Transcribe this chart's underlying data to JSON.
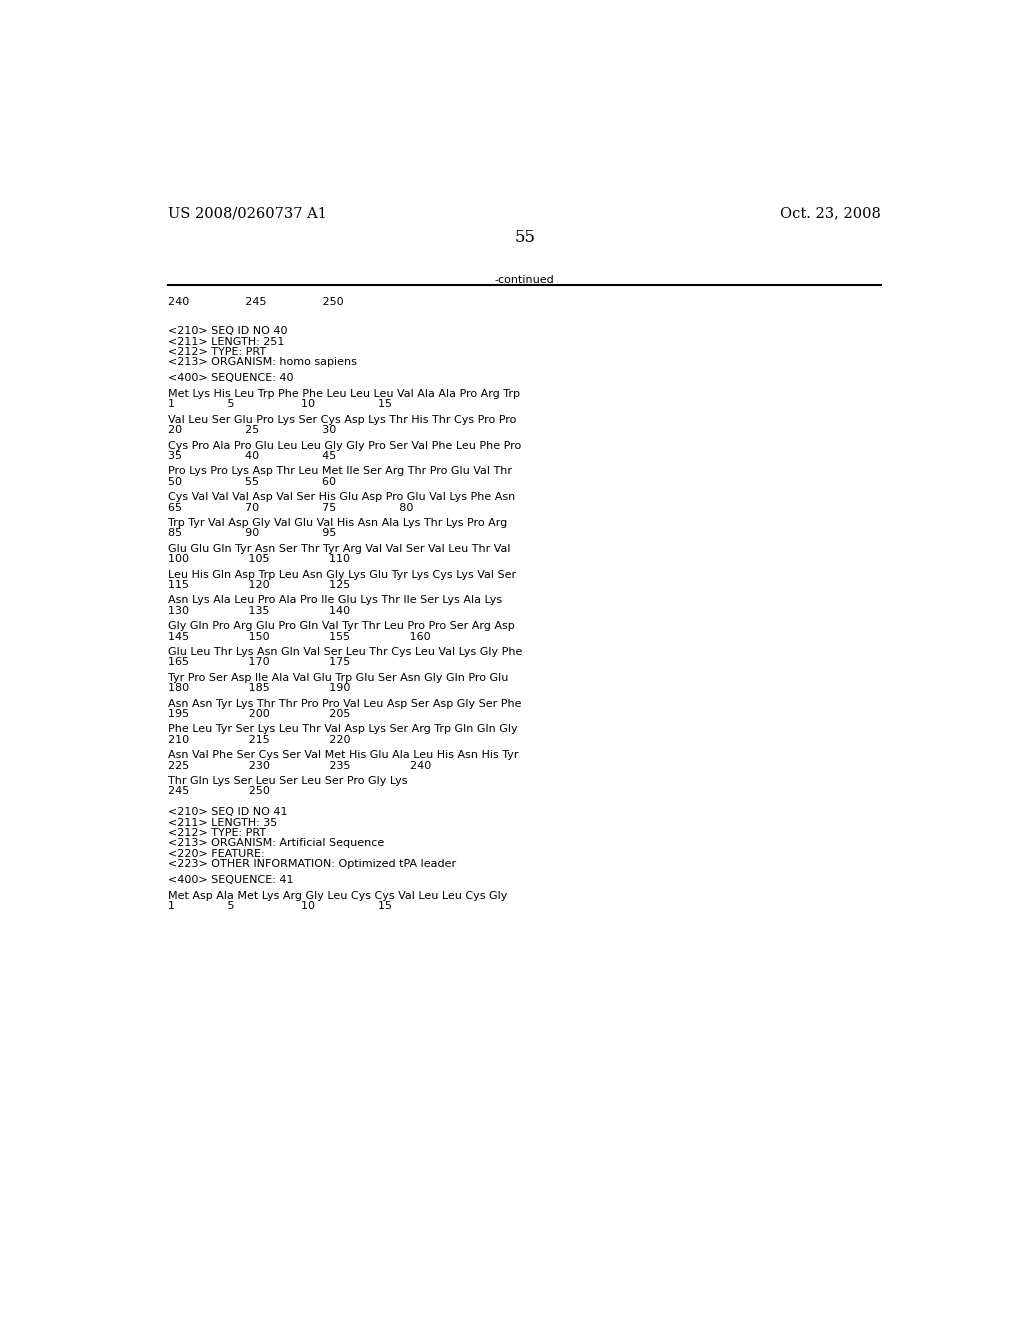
{
  "header_left": "US 2008/0260737 A1",
  "header_right": "Oct. 23, 2008",
  "page_number": "55",
  "continued_label": "-continued",
  "background_color": "#ffffff",
  "text_color": "#000000",
  "font_size": 8.0,
  "header_font_size": 10.5,
  "ruler_numbers": "240                245                250",
  "metadata_block": [
    "<210> SEQ ID NO 40",
    "<211> LENGTH: 251",
    "<212> TYPE: PRT",
    "<213> ORGANISM: homo sapiens"
  ],
  "sequence_label": "<400> SEQUENCE: 40",
  "sequence_lines": [
    [
      "Met Lys His Leu Trp Phe Phe Leu Leu Leu Val Ala Ala Pro Arg Trp",
      "1               5                   10                  15"
    ],
    [
      "Val Leu Ser Glu Pro Lys Ser Cys Asp Lys Thr His Thr Cys Pro Pro",
      "20                  25                  30"
    ],
    [
      "Cys Pro Ala Pro Glu Leu Leu Gly Gly Pro Ser Val Phe Leu Phe Pro",
      "35                  40                  45"
    ],
    [
      "Pro Lys Pro Lys Asp Thr Leu Met Ile Ser Arg Thr Pro Glu Val Thr",
      "50                  55                  60"
    ],
    [
      "Cys Val Val Val Asp Val Ser His Glu Asp Pro Glu Val Lys Phe Asn",
      "65                  70                  75                  80"
    ],
    [
      "Trp Tyr Val Asp Gly Val Glu Val His Asn Ala Lys Thr Lys Pro Arg",
      "85                  90                  95"
    ],
    [
      "Glu Glu Gln Tyr Asn Ser Thr Tyr Arg Val Val Ser Val Leu Thr Val",
      "100                 105                 110"
    ],
    [
      "Leu His Gln Asp Trp Leu Asn Gly Lys Glu Tyr Lys Cys Lys Val Ser",
      "115                 120                 125"
    ],
    [
      "Asn Lys Ala Leu Pro Ala Pro Ile Glu Lys Thr Ile Ser Lys Ala Lys",
      "130                 135                 140"
    ],
    [
      "Gly Gln Pro Arg Glu Pro Gln Val Tyr Thr Leu Pro Pro Ser Arg Asp",
      "145                 150                 155                 160"
    ],
    [
      "Glu Leu Thr Lys Asn Gln Val Ser Leu Thr Cys Leu Val Lys Gly Phe",
      "165                 170                 175"
    ],
    [
      "Tyr Pro Ser Asp Ile Ala Val Glu Trp Glu Ser Asn Gly Gln Pro Glu",
      "180                 185                 190"
    ],
    [
      "Asn Asn Tyr Lys Thr Thr Pro Pro Val Leu Asp Ser Asp Gly Ser Phe",
      "195                 200                 205"
    ],
    [
      "Phe Leu Tyr Ser Lys Leu Thr Val Asp Lys Ser Arg Trp Gln Gln Gly",
      "210                 215                 220"
    ],
    [
      "Asn Val Phe Ser Cys Ser Val Met His Glu Ala Leu His Asn His Tyr",
      "225                 230                 235                 240"
    ],
    [
      "Thr Gln Lys Ser Leu Ser Leu Ser Pro Gly Lys",
      "245                 250"
    ]
  ],
  "metadata_block2": [
    "<210> SEQ ID NO 41",
    "<211> LENGTH: 35",
    "<212> TYPE: PRT",
    "<213> ORGANISM: Artificial Sequence",
    "<220> FEATURE:",
    "<223> OTHER INFORMATION: Optimized tPA leader"
  ],
  "sequence_label2": "<400> SEQUENCE: 41",
  "sequence_lines2": [
    [
      "Met Asp Ala Met Lys Arg Gly Leu Cys Cys Val Leu Leu Cys Gly",
      "1               5                   10                  15"
    ]
  ]
}
